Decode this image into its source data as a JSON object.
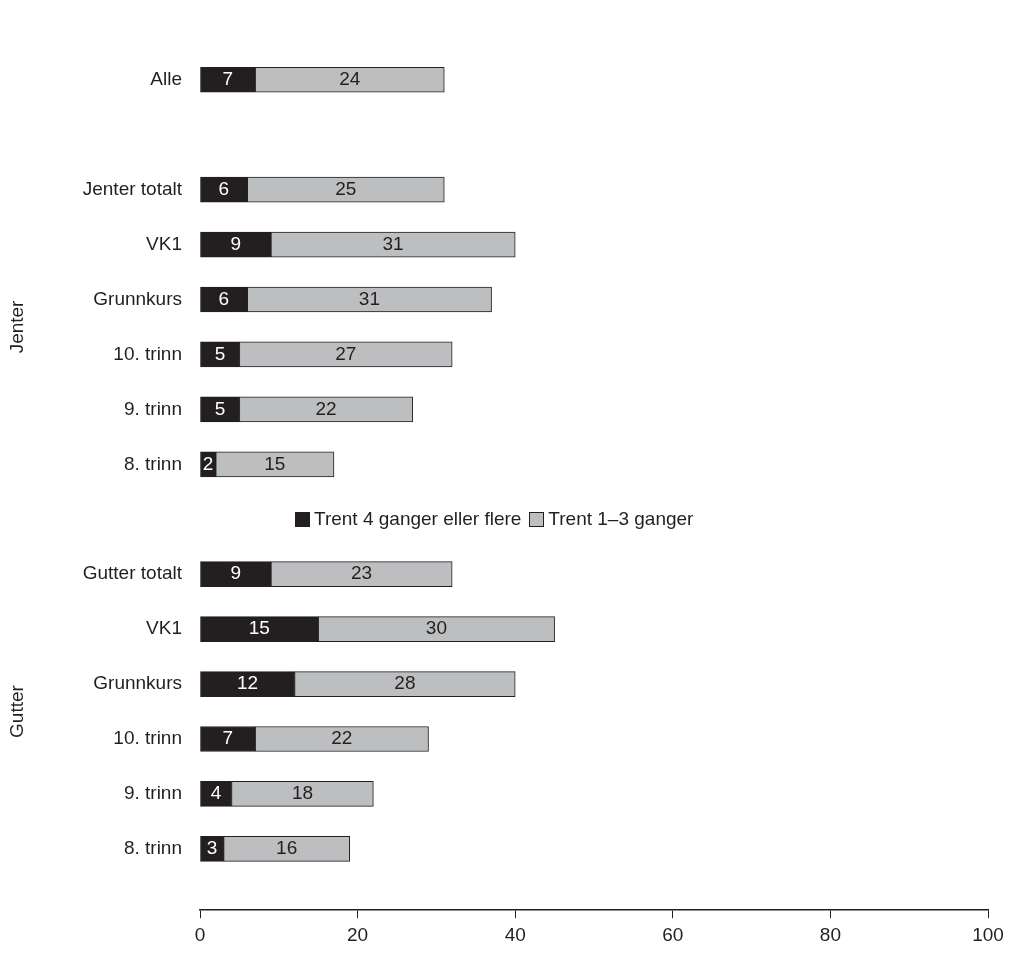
{
  "chart_data": {
    "type": "bar",
    "orientation": "horizontal",
    "stacked": true,
    "categories": [
      "Alle",
      "Jenter totalt",
      "VK1",
      "Grunnkurs",
      "10. trinn",
      "9. trinn",
      "8. trinn",
      "Gutter totalt",
      "VK1",
      "Grunnkurs",
      "10. trinn",
      "9. trinn",
      "8. trinn"
    ],
    "series": [
      {
        "name": "Trent 4 ganger eller flere",
        "color": "#231f20",
        "values": [
          7,
          6,
          9,
          6,
          5,
          5,
          2,
          9,
          15,
          12,
          7,
          4,
          3
        ]
      },
      {
        "name": "Trent 1–3 ganger",
        "color": "#bcbec0",
        "values": [
          24,
          25,
          31,
          31,
          27,
          22,
          15,
          23,
          30,
          28,
          22,
          18,
          16
        ]
      }
    ],
    "xlim": [
      0,
      100
    ],
    "xticks": [
      0,
      20,
      40,
      60,
      80,
      100
    ],
    "annotations": [
      "Jenter",
      "Gutter"
    ],
    "data_labels": true,
    "grid": false,
    "legend": "center"
  }
}
